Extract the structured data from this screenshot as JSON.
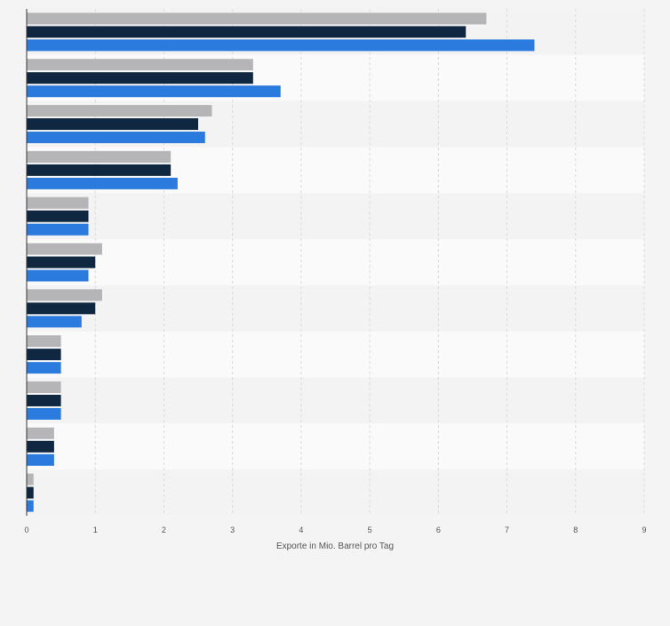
{
  "chart_data": {
    "type": "bar",
    "orientation": "horizontal",
    "xlabel": "Exporte in Mio. Barrel pro Tag",
    "xlim": [
      0,
      9
    ],
    "xticks": [
      0,
      1,
      2,
      3,
      4,
      5,
      6,
      7,
      8,
      9
    ],
    "grid": true,
    "series": [
      {
        "color": "#b5b5b8",
        "values": [
          6.7,
          3.3,
          2.7,
          2.1,
          0.9,
          1.1,
          1.1,
          0.5,
          0.5,
          0.4,
          0.1
        ]
      },
      {
        "color": "#0f2741",
        "values": [
          6.4,
          3.3,
          2.5,
          2.1,
          0.9,
          1.0,
          1.0,
          0.5,
          0.5,
          0.4,
          0.1
        ]
      },
      {
        "color": "#2b7bde",
        "values": [
          7.4,
          3.7,
          2.6,
          2.2,
          0.9,
          0.9,
          0.8,
          0.5,
          0.5,
          0.4,
          0.1
        ]
      }
    ],
    "colors": {
      "band_even": "#f3f3f3",
      "band_odd": "#fafafa",
      "grid": "#d9d9d9",
      "axis": "#333333",
      "tick_text": "#555555"
    }
  }
}
